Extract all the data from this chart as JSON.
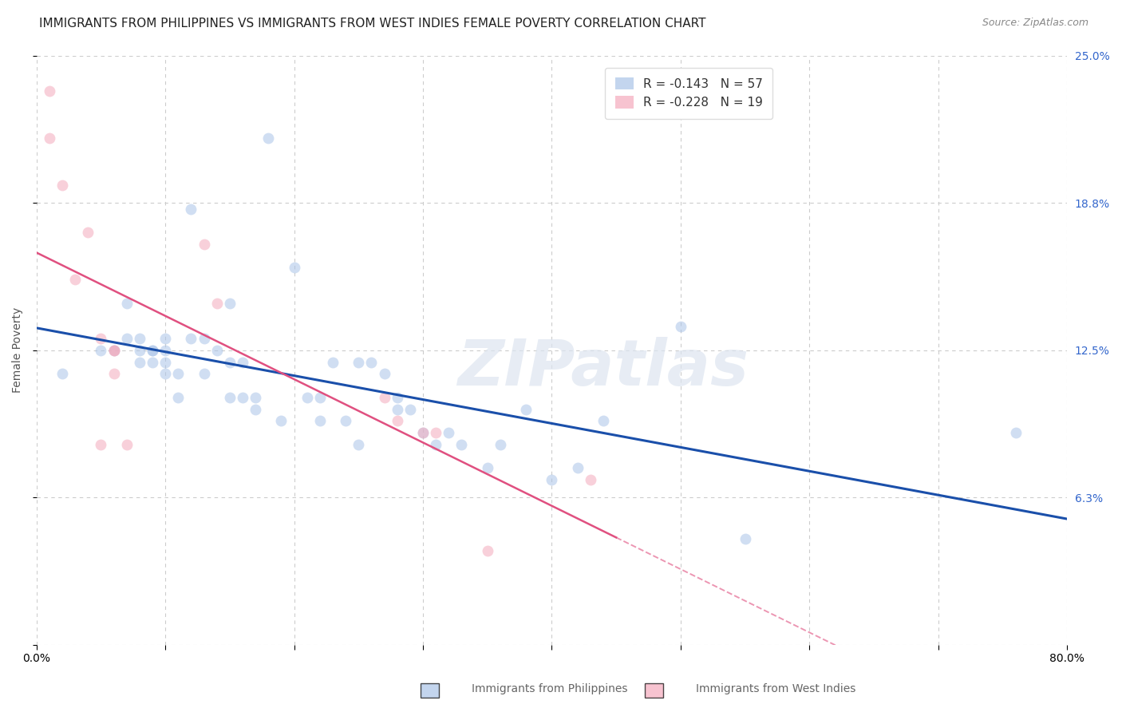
{
  "title": "IMMIGRANTS FROM PHILIPPINES VS IMMIGRANTS FROM WEST INDIES FEMALE POVERTY CORRELATION CHART",
  "source": "Source: ZipAtlas.com",
  "ylabel": "Female Poverty",
  "xlim": [
    0.0,
    0.8
  ],
  "ylim": [
    0.0,
    0.25
  ],
  "yticks": [
    0.0,
    0.0625,
    0.125,
    0.1875,
    0.25
  ],
  "ytick_labels": [
    "",
    "6.3%",
    "12.5%",
    "18.8%",
    "25.0%"
  ],
  "xtick_labels": [
    "0.0%",
    "",
    "",
    "",
    "",
    "",
    "",
    "",
    "80.0%"
  ],
  "xticks": [
    0.0,
    0.1,
    0.2,
    0.3,
    0.4,
    0.5,
    0.6,
    0.7,
    0.8
  ],
  "grid_color": "#cccccc",
  "bg_color": "#ffffff",
  "watermark": "ZIPatlas",
  "legend_R1": "R = -0.143",
  "legend_N1": "N = 57",
  "legend_R2": "R = -0.228",
  "legend_N2": "N = 19",
  "color_blue": "#aac4e8",
  "color_pink": "#f4aabc",
  "line_blue": "#1a4faa",
  "line_pink": "#e05080",
  "label1": "Immigrants from Philippines",
  "label2": "Immigrants from West Indies",
  "phil_x": [
    0.02,
    0.05,
    0.06,
    0.07,
    0.07,
    0.08,
    0.08,
    0.08,
    0.09,
    0.09,
    0.09,
    0.1,
    0.1,
    0.1,
    0.1,
    0.11,
    0.11,
    0.12,
    0.12,
    0.13,
    0.13,
    0.14,
    0.15,
    0.15,
    0.15,
    0.16,
    0.16,
    0.17,
    0.17,
    0.18,
    0.19,
    0.2,
    0.21,
    0.22,
    0.22,
    0.23,
    0.24,
    0.25,
    0.25,
    0.26,
    0.27,
    0.28,
    0.28,
    0.29,
    0.3,
    0.31,
    0.32,
    0.33,
    0.35,
    0.36,
    0.38,
    0.4,
    0.42,
    0.44,
    0.5,
    0.55,
    0.76
  ],
  "phil_y": [
    0.115,
    0.125,
    0.125,
    0.145,
    0.13,
    0.13,
    0.125,
    0.12,
    0.125,
    0.125,
    0.12,
    0.13,
    0.125,
    0.12,
    0.115,
    0.115,
    0.105,
    0.185,
    0.13,
    0.13,
    0.115,
    0.125,
    0.145,
    0.12,
    0.105,
    0.105,
    0.12,
    0.105,
    0.1,
    0.215,
    0.095,
    0.16,
    0.105,
    0.105,
    0.095,
    0.12,
    0.095,
    0.085,
    0.12,
    0.12,
    0.115,
    0.105,
    0.1,
    0.1,
    0.09,
    0.085,
    0.09,
    0.085,
    0.075,
    0.085,
    0.1,
    0.07,
    0.075,
    0.095,
    0.135,
    0.045,
    0.09
  ],
  "wi_x": [
    0.01,
    0.01,
    0.02,
    0.03,
    0.04,
    0.05,
    0.05,
    0.06,
    0.06,
    0.06,
    0.07,
    0.13,
    0.14,
    0.27,
    0.28,
    0.3,
    0.31,
    0.35,
    0.43
  ],
  "wi_y": [
    0.235,
    0.215,
    0.195,
    0.155,
    0.175,
    0.13,
    0.085,
    0.125,
    0.115,
    0.125,
    0.085,
    0.17,
    0.145,
    0.105,
    0.095,
    0.09,
    0.09,
    0.04,
    0.07
  ],
  "title_fontsize": 11,
  "axis_fontsize": 10,
  "tick_fontsize": 10,
  "marker_size": 100,
  "marker_alpha": 0.55
}
